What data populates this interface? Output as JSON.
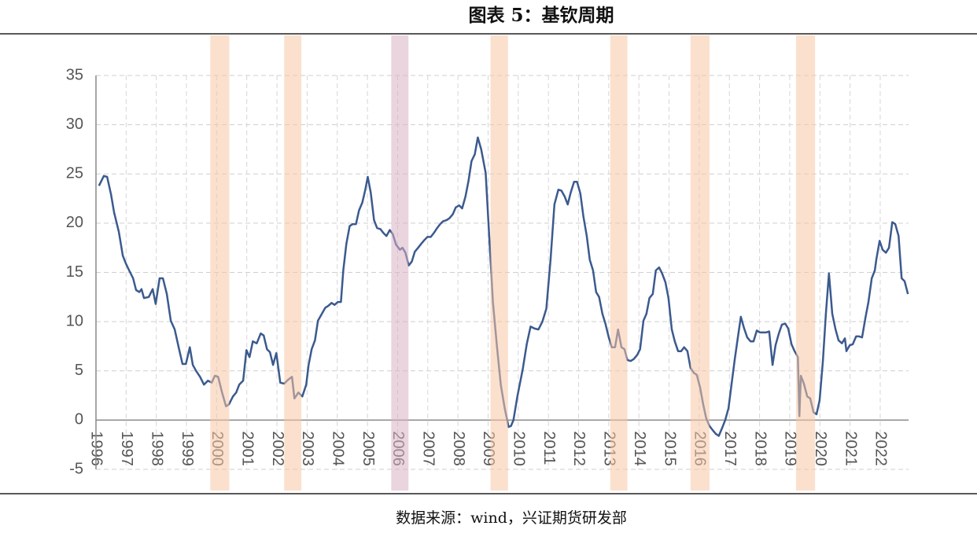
{
  "chart_data": {
    "type": "line",
    "title": "图表 5：基钦周期",
    "source": "数据来源：wind，兴证期货研发部",
    "color": "#3b5a8e",
    "grid": true,
    "xlim": [
      1996,
      2022.94
    ],
    "xticks": [
      1996,
      1997,
      1998,
      1999,
      2000,
      2001,
      2002,
      2003,
      2004,
      2005,
      2006,
      2007,
      2008,
      2009,
      2010,
      2011,
      2012,
      2013,
      2014,
      2015,
      2016,
      2017,
      2018,
      2019,
      2020,
      2021,
      2022
    ],
    "ylim": [
      -5,
      35
    ],
    "yticks": [
      -5,
      0,
      5,
      10,
      15,
      20,
      25,
      30,
      35
    ],
    "shaded_periods": [
      {
        "start": 1999.79,
        "end": 2000.42,
        "color": "#f8c7a6"
      },
      {
        "start": 2002.24,
        "end": 2002.81,
        "color": "#f8c7a6"
      },
      {
        "start": 2005.79,
        "end": 2006.36,
        "color": "#d9b0c2"
      },
      {
        "start": 2009.08,
        "end": 2009.66,
        "color": "#f8c7a6"
      },
      {
        "start": 2013.05,
        "end": 2013.62,
        "color": "#f8c7a6"
      },
      {
        "start": 2015.71,
        "end": 2016.34,
        "color": "#f8c7a6"
      },
      {
        "start": 2019.21,
        "end": 2019.84,
        "color": "#f8c7a6"
      }
    ],
    "x": [
      1996.1,
      1996.26,
      1996.37,
      1996.5,
      1996.6,
      1996.76,
      1996.89,
      1996.99,
      1997.1,
      1997.23,
      1997.33,
      1997.44,
      1997.51,
      1997.59,
      1997.75,
      1997.88,
      1997.98,
      1998.11,
      1998.22,
      1998.35,
      1998.48,
      1998.61,
      1998.74,
      1998.87,
      1998.98,
      1999.11,
      1999.21,
      1999.32,
      1999.45,
      1999.58,
      1999.71,
      1999.84,
      1999.94,
      2000.05,
      2000.18,
      2000.31,
      2000.41,
      2000.54,
      2000.65,
      2000.75,
      2000.88,
      2000.99,
      2001.09,
      2001.2,
      2001.33,
      2001.46,
      2001.56,
      2001.67,
      2001.77,
      2001.87,
      2001.98,
      2002.11,
      2002.24,
      2002.37,
      2002.5,
      2002.58,
      2002.71,
      2002.84,
      2002.97,
      2003.05,
      2003.15,
      2003.26,
      2003.36,
      2003.49,
      2003.6,
      2003.7,
      2003.81,
      2003.91,
      2004.02,
      2004.12,
      2004.2,
      2004.3,
      2004.41,
      2004.51,
      2004.62,
      2004.72,
      2004.83,
      2004.93,
      2005.01,
      2005.11,
      2005.22,
      2005.32,
      2005.43,
      2005.53,
      2005.63,
      2005.74,
      2005.84,
      2005.95,
      2006.08,
      2006.16,
      2006.26,
      2006.37,
      2006.47,
      2006.57,
      2006.68,
      2006.78,
      2006.89,
      2006.99,
      2007.1,
      2007.2,
      2007.31,
      2007.41,
      2007.51,
      2007.62,
      2007.72,
      2007.83,
      2007.93,
      2008.04,
      2008.14,
      2008.25,
      2008.35,
      2008.45,
      2008.56,
      2008.66,
      2008.77,
      2008.92,
      2009.03,
      2009.16,
      2009.29,
      2009.42,
      2009.55,
      2009.68,
      2009.76,
      2009.84,
      2009.97,
      2010.15,
      2010.28,
      2010.41,
      2010.54,
      2010.67,
      2010.8,
      2010.93,
      2011.07,
      2011.2,
      2011.33,
      2011.43,
      2011.54,
      2011.64,
      2011.74,
      2011.85,
      2011.95,
      2012.06,
      2012.16,
      2012.27,
      2012.37,
      2012.48,
      2012.58,
      2012.68,
      2012.79,
      2012.89,
      2013.0,
      2013.1,
      2013.21,
      2013.31,
      2013.42,
      2013.52,
      2013.62,
      2013.73,
      2013.83,
      2013.94,
      2014.04,
      2014.15,
      2014.25,
      2014.35,
      2014.46,
      2014.56,
      2014.67,
      2014.77,
      2014.88,
      2014.98,
      2015.09,
      2015.19,
      2015.3,
      2015.4,
      2015.5,
      2015.61,
      2015.71,
      2015.82,
      2015.92,
      2016.03,
      2016.13,
      2016.23,
      2016.34,
      2016.44,
      2016.55,
      2016.65,
      2016.76,
      2016.86,
      2016.97,
      2017.07,
      2017.18,
      2017.28,
      2017.38,
      2017.49,
      2017.59,
      2017.7,
      2017.8,
      2017.91,
      2018.01,
      2018.11,
      2018.22,
      2018.32,
      2018.43,
      2018.53,
      2018.64,
      2018.74,
      2018.85,
      2018.95,
      2019.06,
      2019.16,
      2019.27,
      2019.32,
      2019.37,
      2019.47,
      2019.58,
      2019.68,
      2019.79,
      2019.89,
      2019.99,
      2020.1,
      2020.2,
      2020.3,
      2020.41,
      2020.52,
      2020.62,
      2020.73,
      2020.83,
      2020.88,
      2020.99,
      2021.09,
      2021.2,
      2021.3,
      2021.4,
      2021.51,
      2021.61,
      2021.72,
      2021.82,
      2021.87,
      2021.98,
      2022.08,
      2022.19,
      2022.29,
      2022.4,
      2022.5,
      2022.61,
      2022.71,
      2022.81,
      2022.92
    ],
    "values": [
      23.8,
      24.8,
      24.7,
      22.9,
      21.1,
      19.1,
      16.7,
      15.9,
      15.2,
      14.4,
      13.2,
      13.0,
      13.3,
      12.4,
      12.5,
      13.3,
      11.8,
      14.4,
      14.4,
      12.8,
      10.1,
      9.2,
      7.4,
      5.7,
      5.7,
      7.4,
      5.6,
      5.0,
      4.4,
      3.6,
      4.0,
      3.8,
      4.5,
      4.4,
      2.8,
      1.4,
      1.6,
      2.4,
      2.8,
      3.6,
      4.0,
      7.1,
      6.4,
      8.0,
      7.8,
      8.8,
      8.6,
      7.2,
      6.9,
      5.6,
      6.8,
      3.8,
      3.7,
      4.1,
      4.4,
      2.2,
      2.8,
      2.4,
      3.6,
      5.6,
      7.2,
      8.1,
      10.1,
      10.8,
      11.4,
      11.6,
      11.9,
      11.7,
      12.0,
      12.0,
      15.2,
      17.9,
      19.7,
      19.9,
      19.9,
      21.3,
      22.1,
      23.4,
      24.7,
      23.1,
      20.3,
      19.5,
      19.4,
      19.0,
      18.7,
      19.3,
      18.9,
      17.8,
      17.3,
      17.5,
      17.0,
      15.7,
      16.1,
      17.1,
      17.5,
      17.9,
      18.3,
      18.6,
      18.6,
      19.0,
      19.5,
      19.9,
      20.2,
      20.3,
      20.5,
      20.9,
      21.6,
      21.8,
      21.5,
      22.7,
      24.3,
      26.3,
      27.0,
      28.7,
      27.5,
      25.1,
      19.1,
      12.0,
      7.6,
      3.6,
      1.2,
      -0.7,
      -0.6,
      0.0,
      2.4,
      5.2,
      7.7,
      9.5,
      9.3,
      9.2,
      10.0,
      11.3,
      16.3,
      21.9,
      23.4,
      23.3,
      22.7,
      21.9,
      23.1,
      24.2,
      24.2,
      23.0,
      20.7,
      18.7,
      16.3,
      15.2,
      13.0,
      12.5,
      10.8,
      9.8,
      8.4,
      7.4,
      7.4,
      9.2,
      7.4,
      7.2,
      6.1,
      6.0,
      6.2,
      6.6,
      7.2,
      10.1,
      10.8,
      12.4,
      12.8,
      15.2,
      15.5,
      14.9,
      14.0,
      12.4,
      9.2,
      8.0,
      7.0,
      7.0,
      7.4,
      7.0,
      5.3,
      4.8,
      4.6,
      3.3,
      1.6,
      0.2,
      -0.6,
      -1.0,
      -1.4,
      -1.6,
      -0.8,
      0.0,
      1.2,
      3.6,
      6.2,
      8.4,
      10.5,
      9.3,
      8.4,
      8.0,
      8.0,
      9.1,
      8.9,
      8.9,
      8.9,
      9.0,
      5.6,
      7.6,
      8.8,
      9.7,
      9.8,
      9.3,
      7.7,
      7.0,
      6.4,
      0.4,
      4.5,
      3.7,
      2.4,
      2.2,
      0.8,
      0.6,
      2.0,
      6.0,
      10.8,
      14.9,
      10.8,
      9.2,
      8.1,
      7.8,
      8.3,
      7.0,
      7.6,
      7.7,
      8.5,
      8.5,
      8.4,
      10.4,
      12.0,
      14.4,
      15.2,
      16.3,
      18.2,
      17.3,
      17.0,
      17.5,
      20.1,
      19.9,
      18.7,
      14.4,
      14.1,
      12.8
    ]
  }
}
